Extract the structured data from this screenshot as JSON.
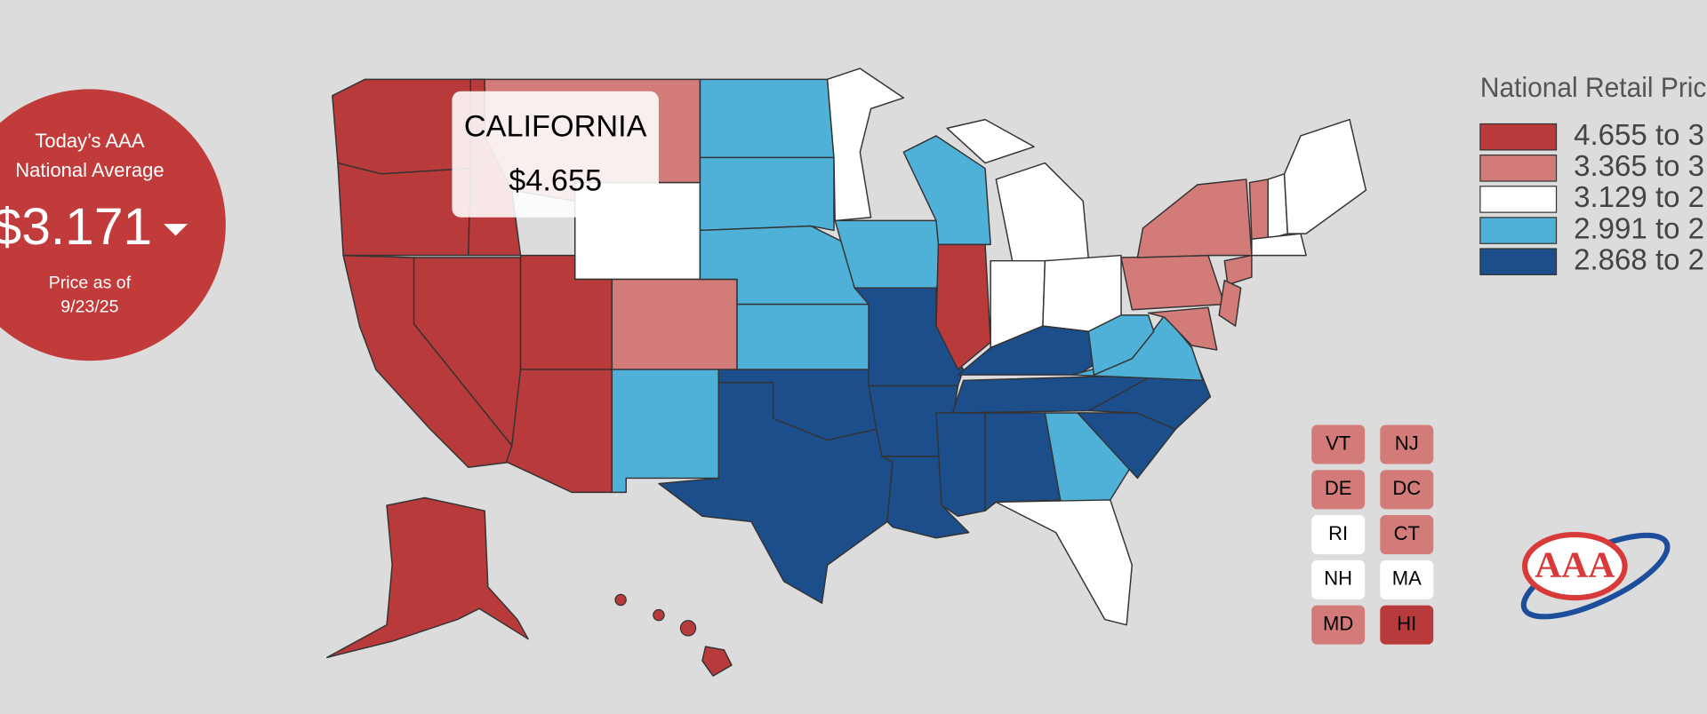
{
  "national_average": {
    "heading": [
      "Today’s AAA",
      "National Average"
    ],
    "price": "$3.171",
    "date_label": "Price as of",
    "date": "9/23/25"
  },
  "tooltip": {
    "state": "CALIFORNIA",
    "price": "$4.655"
  },
  "legend": {
    "title": "National Retail Pric",
    "entries": [
      {
        "label": "4.655 to 3.",
        "color": "#b93a3a"
      },
      {
        "label": "3.365 to 3.",
        "color": "#d27b78"
      },
      {
        "label": "3.129 to 2.",
        "color": "#ffffff"
      },
      {
        "label": "2.991 to 2.",
        "color": "#4fb0d8"
      },
      {
        "label": "2.868 to 2.",
        "color": "#1c4e8c"
      }
    ]
  },
  "small_states": [
    {
      "label": "VT",
      "color": "#d27b78"
    },
    {
      "label": "NJ",
      "color": "#d27b78"
    },
    {
      "label": "DE",
      "color": "#d27b78"
    },
    {
      "label": "DC",
      "color": "#d27b78"
    },
    {
      "label": "RI",
      "color": "#ffffff"
    },
    {
      "label": "CT",
      "color": "#d27b78"
    },
    {
      "label": "NH",
      "color": "#ffffff"
    },
    {
      "label": "MA",
      "color": "#ffffff"
    },
    {
      "label": "MD",
      "color": "#d27b78"
    },
    {
      "label": "HI",
      "color": "#b93a3a"
    }
  ],
  "logo": "AAA"
}
